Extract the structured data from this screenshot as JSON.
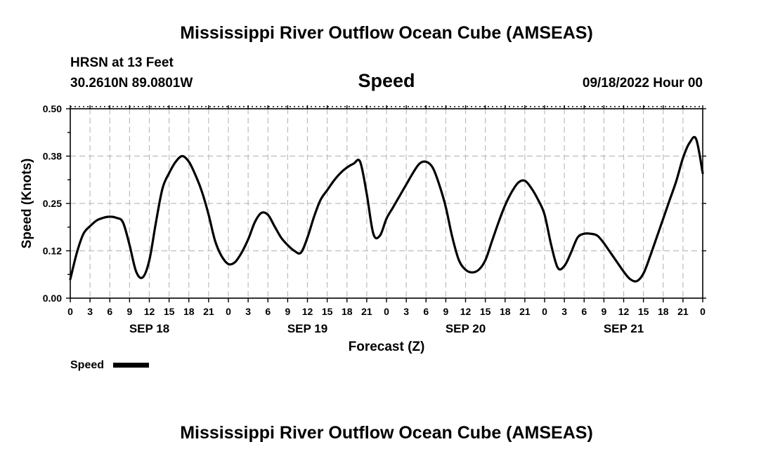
{
  "page": {
    "title": "Mississippi River Outflow Ocean Cube (AMSEAS)",
    "footer_title": "Mississippi River Outflow Ocean Cube (AMSEAS)",
    "station": "HRSN at 13 Feet",
    "location": "30.2610N  89.0801W",
    "variable": "Speed",
    "datetime": "09/18/2022 Hour 00"
  },
  "chart_data": {
    "type": "line",
    "title": "Speed",
    "xlabel": "Forecast (Z)",
    "ylabel": "Speed (Knots)",
    "xlim": [
      0,
      96
    ],
    "ylim": [
      0,
      0.5
    ],
    "yticks": [
      "0.00",
      "0.12",
      "0.25",
      "0.38",
      "0.50"
    ],
    "xtick_labels": [
      "0",
      "3",
      "6",
      "9",
      "12",
      "15",
      "18",
      "21",
      "0",
      "3",
      "6",
      "9",
      "12",
      "15",
      "18",
      "21",
      "0",
      "3",
      "6",
      "9",
      "12",
      "15",
      "18",
      "21",
      "0",
      "3",
      "6",
      "9",
      "12",
      "15",
      "18",
      "21",
      "0"
    ],
    "day_labels": [
      {
        "label": "SEP 18",
        "hour": 12
      },
      {
        "label": "SEP 19",
        "hour": 36
      },
      {
        "label": "SEP 20",
        "hour": 60
      },
      {
        "label": "SEP 21",
        "hour": 84
      }
    ],
    "grid": true,
    "legend": {
      "placement": "bottom-left",
      "entries": [
        "Speed"
      ]
    },
    "series": [
      {
        "name": "Speed",
        "color": "#000000",
        "x": [
          0,
          1,
          2,
          3,
          4,
          5,
          6,
          7,
          8,
          9,
          10,
          11,
          12,
          13,
          14,
          15,
          16,
          17,
          18,
          19,
          20,
          21,
          22,
          23,
          24,
          25,
          26,
          27,
          28,
          29,
          30,
          31,
          32,
          33,
          34,
          35,
          36,
          37,
          38,
          39,
          40,
          41,
          42,
          43,
          44,
          45,
          46,
          47,
          48,
          49,
          50,
          51,
          52,
          53,
          54,
          55,
          56,
          57,
          58,
          59,
          60,
          61,
          62,
          63,
          64,
          65,
          66,
          67,
          68,
          69,
          70,
          71,
          72,
          73,
          74,
          75,
          76,
          77,
          78,
          79,
          80,
          81,
          82,
          83,
          84,
          85,
          86,
          87,
          88,
          89,
          90,
          91,
          92,
          93,
          94,
          95,
          96
        ],
        "y": [
          0.05,
          0.12,
          0.17,
          0.19,
          0.205,
          0.212,
          0.215,
          0.212,
          0.2,
          0.14,
          0.07,
          0.055,
          0.1,
          0.2,
          0.29,
          0.33,
          0.36,
          0.375,
          0.36,
          0.325,
          0.28,
          0.22,
          0.15,
          0.11,
          0.09,
          0.095,
          0.12,
          0.155,
          0.2,
          0.225,
          0.22,
          0.19,
          0.16,
          0.14,
          0.125,
          0.12,
          0.16,
          0.215,
          0.26,
          0.285,
          0.31,
          0.33,
          0.345,
          0.355,
          0.36,
          0.275,
          0.17,
          0.165,
          0.21,
          0.24,
          0.27,
          0.3,
          0.33,
          0.355,
          0.36,
          0.345,
          0.3,
          0.24,
          0.16,
          0.1,
          0.075,
          0.068,
          0.075,
          0.1,
          0.15,
          0.2,
          0.245,
          0.28,
          0.305,
          0.31,
          0.29,
          0.26,
          0.22,
          0.14,
          0.08,
          0.085,
          0.12,
          0.16,
          0.17,
          0.17,
          0.165,
          0.145,
          0.12,
          0.095,
          0.07,
          0.05,
          0.045,
          0.065,
          0.11,
          0.16,
          0.21,
          0.26,
          0.31,
          0.37,
          0.41,
          0.42,
          0.33
        ]
      }
    ]
  }
}
